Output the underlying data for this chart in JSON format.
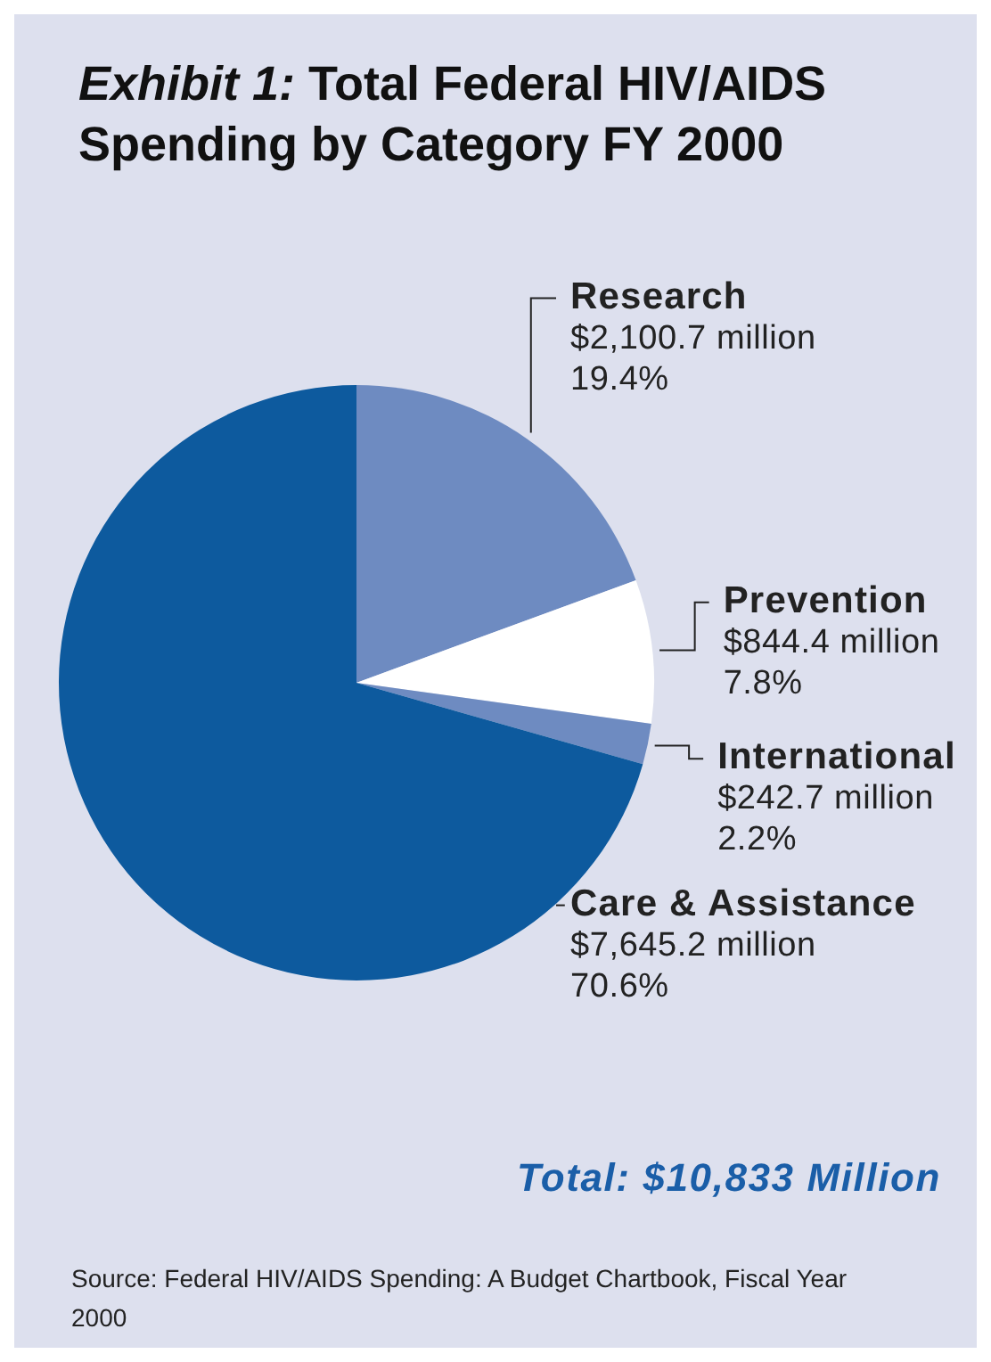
{
  "chart_data": {
    "type": "pie",
    "title": "Exhibit 1: Total Federal HIV/AIDS Spending by Category FY 2000",
    "categories": [
      "Research",
      "Prevention",
      "International",
      "Care & Assistance"
    ],
    "values": [
      19.4,
      7.8,
      2.2,
      70.6
    ],
    "colors": [
      "#6e8bc1",
      "#ffffff",
      "#6e8bc1",
      "#0d5a9e"
    ],
    "value_labels": [
      "$2,100.7 million\n19.4%",
      "$844.4 million\n7.8%",
      "$242.7 million\n2.2%",
      "$7,645.2 million\n70.6%"
    ],
    "annotations": [
      "Total: $10,833 Million",
      "Source: Federal HIV/AIDS Spending: A Budget Chartbook, Fiscal Year 2000"
    ]
  }
}
